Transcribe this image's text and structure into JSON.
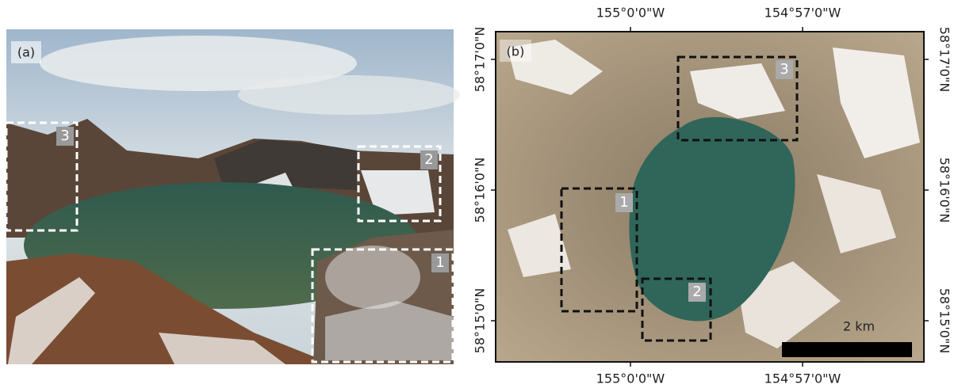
{
  "panels": [
    {
      "label": "(a)",
      "boxes": [
        "3",
        "2",
        "1"
      ]
    },
    {
      "label": "(b)",
      "boxes": [
        "3",
        "1",
        "2"
      ],
      "scale_bar": "2 km",
      "top_labels": [
        "155°0'0\"W",
        "154°57'0\"W"
      ],
      "bottom_labels": [
        "155°0'0\"W",
        "154°57'0\"W"
      ],
      "left_labels": [
        "58°17'0\"N",
        "58°16'0\"N",
        "58°15'0\"N"
      ],
      "right_labels": [
        "58°17'0\"N",
        "58°16'0\"N",
        "58°15'0\"N"
      ]
    }
  ]
}
